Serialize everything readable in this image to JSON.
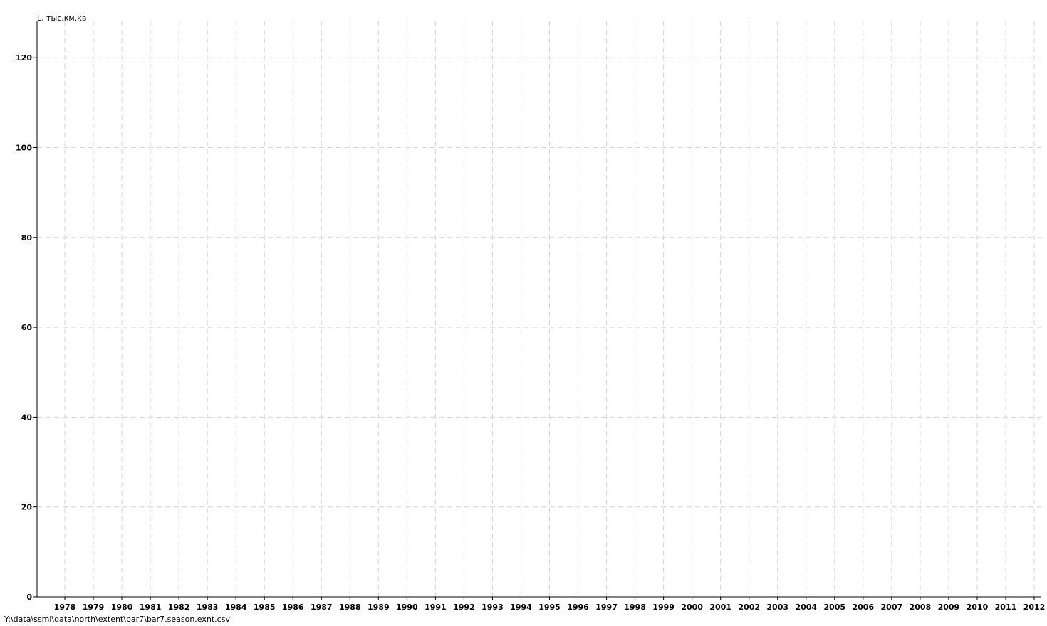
{
  "chart_data": {
    "type": "line",
    "title": "",
    "xlabel": "",
    "ylabel": "L, тыс.км.кв",
    "x_ticks": [
      "1978",
      "1979",
      "1980",
      "1981",
      "1982",
      "1983",
      "1984",
      "1985",
      "1986",
      "1987",
      "1988",
      "1989",
      "1990",
      "1991",
      "1992",
      "1993",
      "1994",
      "1995",
      "1996",
      "1997",
      "1998",
      "1999",
      "2000",
      "2001",
      "2002",
      "2003",
      "2004",
      "2005",
      "2006",
      "2007",
      "2008",
      "2009",
      "2010",
      "2011",
      "2012"
    ],
    "y_ticks": [
      0,
      20,
      40,
      60,
      80,
      100,
      120
    ],
    "xlim": [
      1977,
      2012.2
    ],
    "ylim": [
      0,
      127
    ],
    "grid": true,
    "legend": "none"
  },
  "file_path": "Y:\\data\\ssmi\\data\\north\\extent\\bar7\\bar7.season.exnt.csv"
}
